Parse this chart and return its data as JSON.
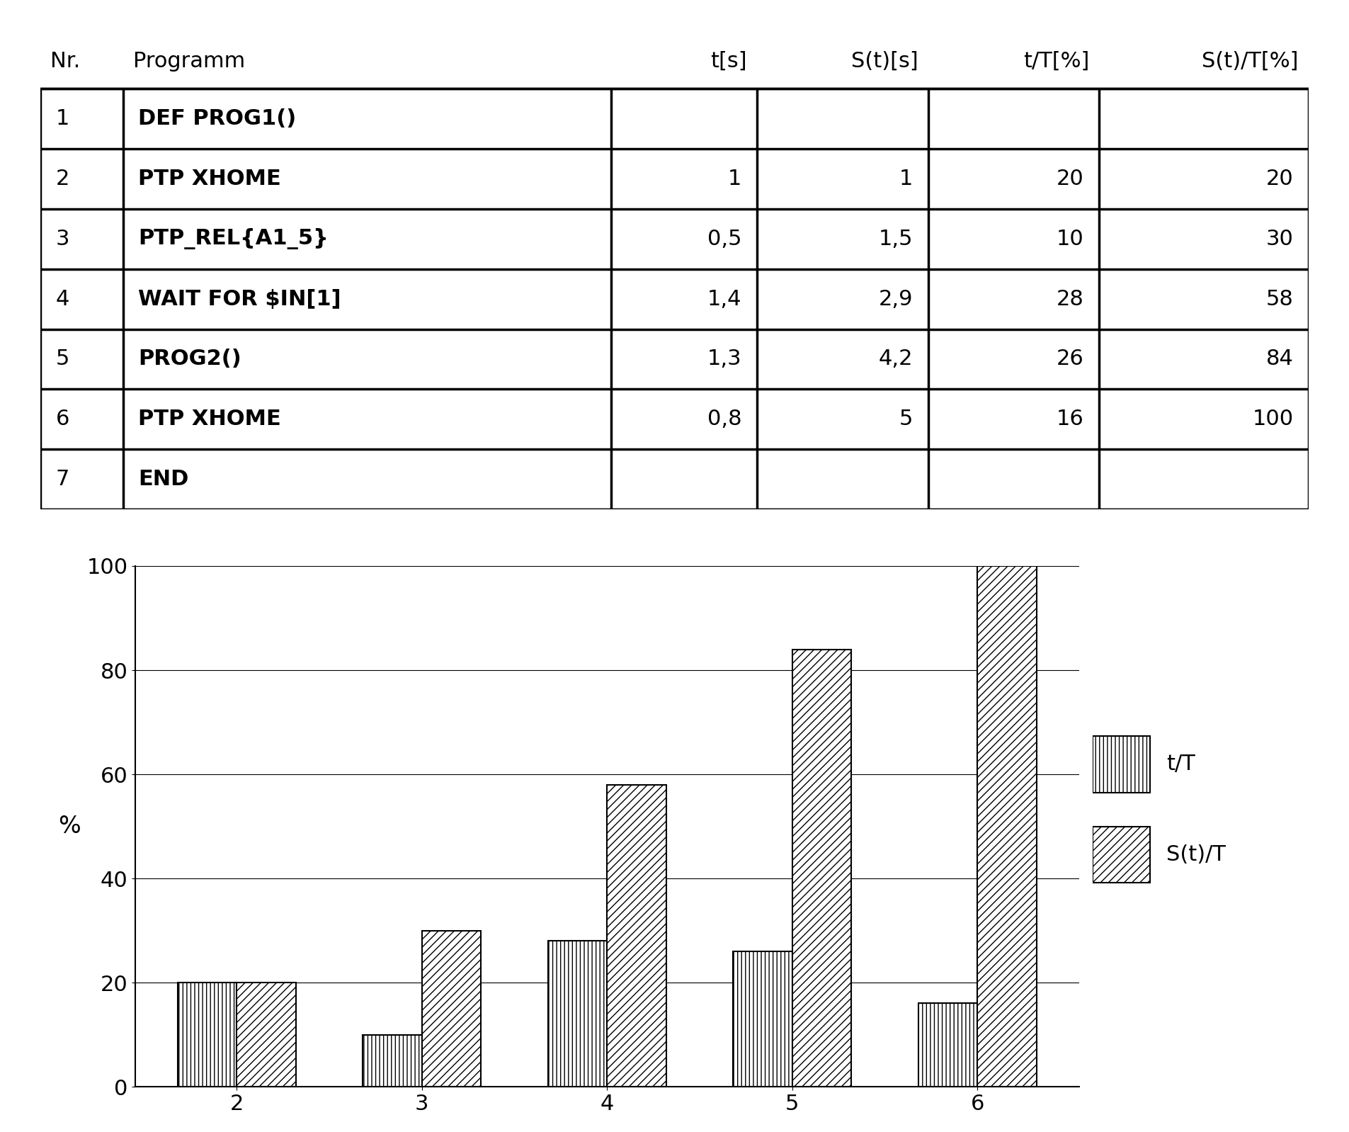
{
  "table_headers": [
    "Nr.",
    "Programm",
    "t[s]",
    "S(t)[s]",
    "t/T[%]",
    "S(t)/T[%]"
  ],
  "table_rows": [
    [
      "1",
      "DEF PROG1()",
      "",
      "",
      "",
      ""
    ],
    [
      "2",
      "PTP XHOME",
      "1",
      "1",
      "20",
      "20"
    ],
    [
      "3",
      "PTP_REL{A1_5}",
      "0,5",
      "1,5",
      "10",
      "30"
    ],
    [
      "4",
      "WAIT FOR $IN[1]",
      "1,4",
      "2,9",
      "28",
      "58"
    ],
    [
      "5",
      "PROG2()",
      "1,3",
      "4,2",
      "26",
      "84"
    ],
    [
      "6",
      "PTP XHOME",
      "0,8",
      "5",
      "16",
      "100"
    ],
    [
      "7",
      "END",
      "",
      "",
      "",
      ""
    ]
  ],
  "chart_categories": [
    "2",
    "3",
    "4",
    "5",
    "6"
  ],
  "tT_values": [
    20,
    10,
    28,
    26,
    16
  ],
  "StT_values": [
    20,
    30,
    58,
    84,
    100
  ],
  "ylabel": "%",
  "ylim": [
    0,
    100
  ],
  "yticks": [
    0,
    20,
    40,
    60,
    80,
    100
  ],
  "legend_tT": "t/T",
  "legend_StT": "S(t)/T",
  "background_color": "#ffffff",
  "bar_width": 0.32,
  "col_widths": [
    0.065,
    0.385,
    0.115,
    0.135,
    0.135,
    0.165
  ],
  "header_fontsize": 22,
  "cell_fontsize": 22,
  "chart_fontsize": 22,
  "table_lw": 2.5
}
